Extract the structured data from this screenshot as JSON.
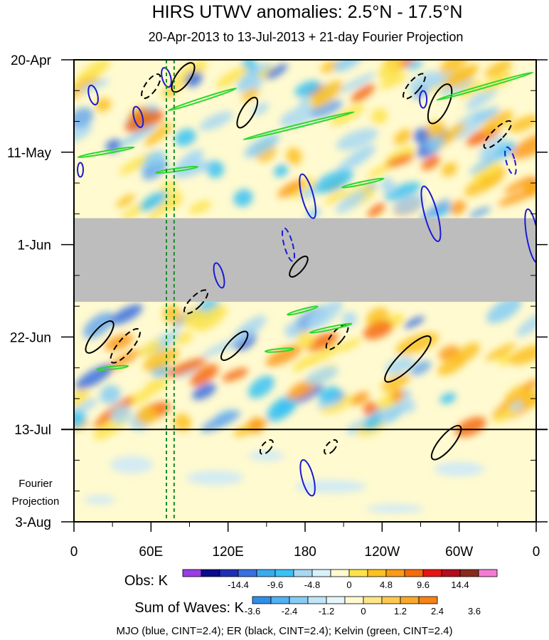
{
  "chart_data": {
    "type": "heatmap",
    "title": "HIRS UTWV anomalies: 2.5°N - 17.5°N",
    "subtitle": "20-Apr-2013 to 13-Jul-2013 + 21-day Fourier Projection",
    "x_ticks": [
      "0",
      "60E",
      "120E",
      "180",
      "120W",
      "60W",
      "0"
    ],
    "x_tick_values": [
      0,
      60,
      120,
      180,
      240,
      300,
      360
    ],
    "xlim": [
      0,
      360
    ],
    "y_ticks": [
      "20-Apr",
      "11-May",
      "1-Jun",
      "22-Jun",
      "13-Jul",
      "3-Aug"
    ],
    "y_tick_days": [
      0,
      21,
      42,
      63,
      84,
      105
    ],
    "ylim_days": [
      0,
      105
    ],
    "observation_end_label": "13-Jul",
    "projection_label_lines": [
      "Fourier",
      "Projection"
    ],
    "missing_data_days": [
      36,
      55
    ],
    "reference_lines_lon": [
      72,
      78
    ],
    "obs_colorbar": {
      "label": "Obs: K",
      "tick_labels": [
        "-14.4",
        "-9.6",
        "-4.8",
        "0",
        "4.8",
        "9.6",
        "14.4"
      ],
      "colors": [
        "#9a3ce6",
        "#0a0a8a",
        "#1f2fb5",
        "#3a70e0",
        "#3aaaf0",
        "#38c2f5",
        "#a8d8f2",
        "#d8f2fa",
        "#fffbd0",
        "#fde34a",
        "#fcc020",
        "#fb9a15",
        "#f66a0c",
        "#e81414",
        "#b40c1c",
        "#8a2a1c",
        "#f57ad2"
      ]
    },
    "waves_colorbar": {
      "label": "Sum of Waves: K",
      "tick_labels": [
        "-3.6",
        "-2.4",
        "-1.2",
        "0",
        "1.2",
        "2.4",
        "3.6"
      ],
      "colors": [
        "#2e8fe8",
        "#4fb1f2",
        "#86cdf5",
        "#bfe6f8",
        "#e6f6fb",
        "#fffad0",
        "#fde58a",
        "#fcc850",
        "#fba828",
        "#f88214"
      ]
    },
    "colors": {
      "MJO": "#1a1ad6",
      "ER": "#000000",
      "Kelvin": "#2ed82e",
      "reference_line": "#1a8a2a",
      "missing": "#bdbdbd"
    },
    "footnote": "MJO (blue, CINT=2.4); ER (black, CINT=2.4); Kelvin (green, CINT=2.4)"
  }
}
